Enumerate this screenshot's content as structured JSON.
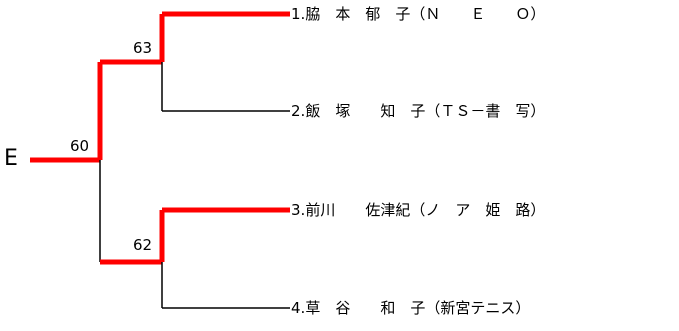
{
  "bracket": {
    "root_label": "E",
    "final_score": "60",
    "semifinals": [
      {
        "score": "63",
        "winner_index": 0
      },
      {
        "score": "62",
        "winner_index": 2
      }
    ],
    "entrants": [
      {
        "number": "1.",
        "name": "脇　本　郁　子（Ｎ　　Ｅ　　Ｏ）"
      },
      {
        "number": "2.",
        "name": "飯　塚　　知　子（ＴＳ－書　写）"
      },
      {
        "number": "3.",
        "name": "前川　　佐津紀（ノ　ア　姫　路）"
      },
      {
        "number": "4.",
        "name": "草　谷　　和　子（新宮テニス）"
      }
    ],
    "colors": {
      "winner_line": "#ff0000",
      "line": "#000000"
    }
  }
}
